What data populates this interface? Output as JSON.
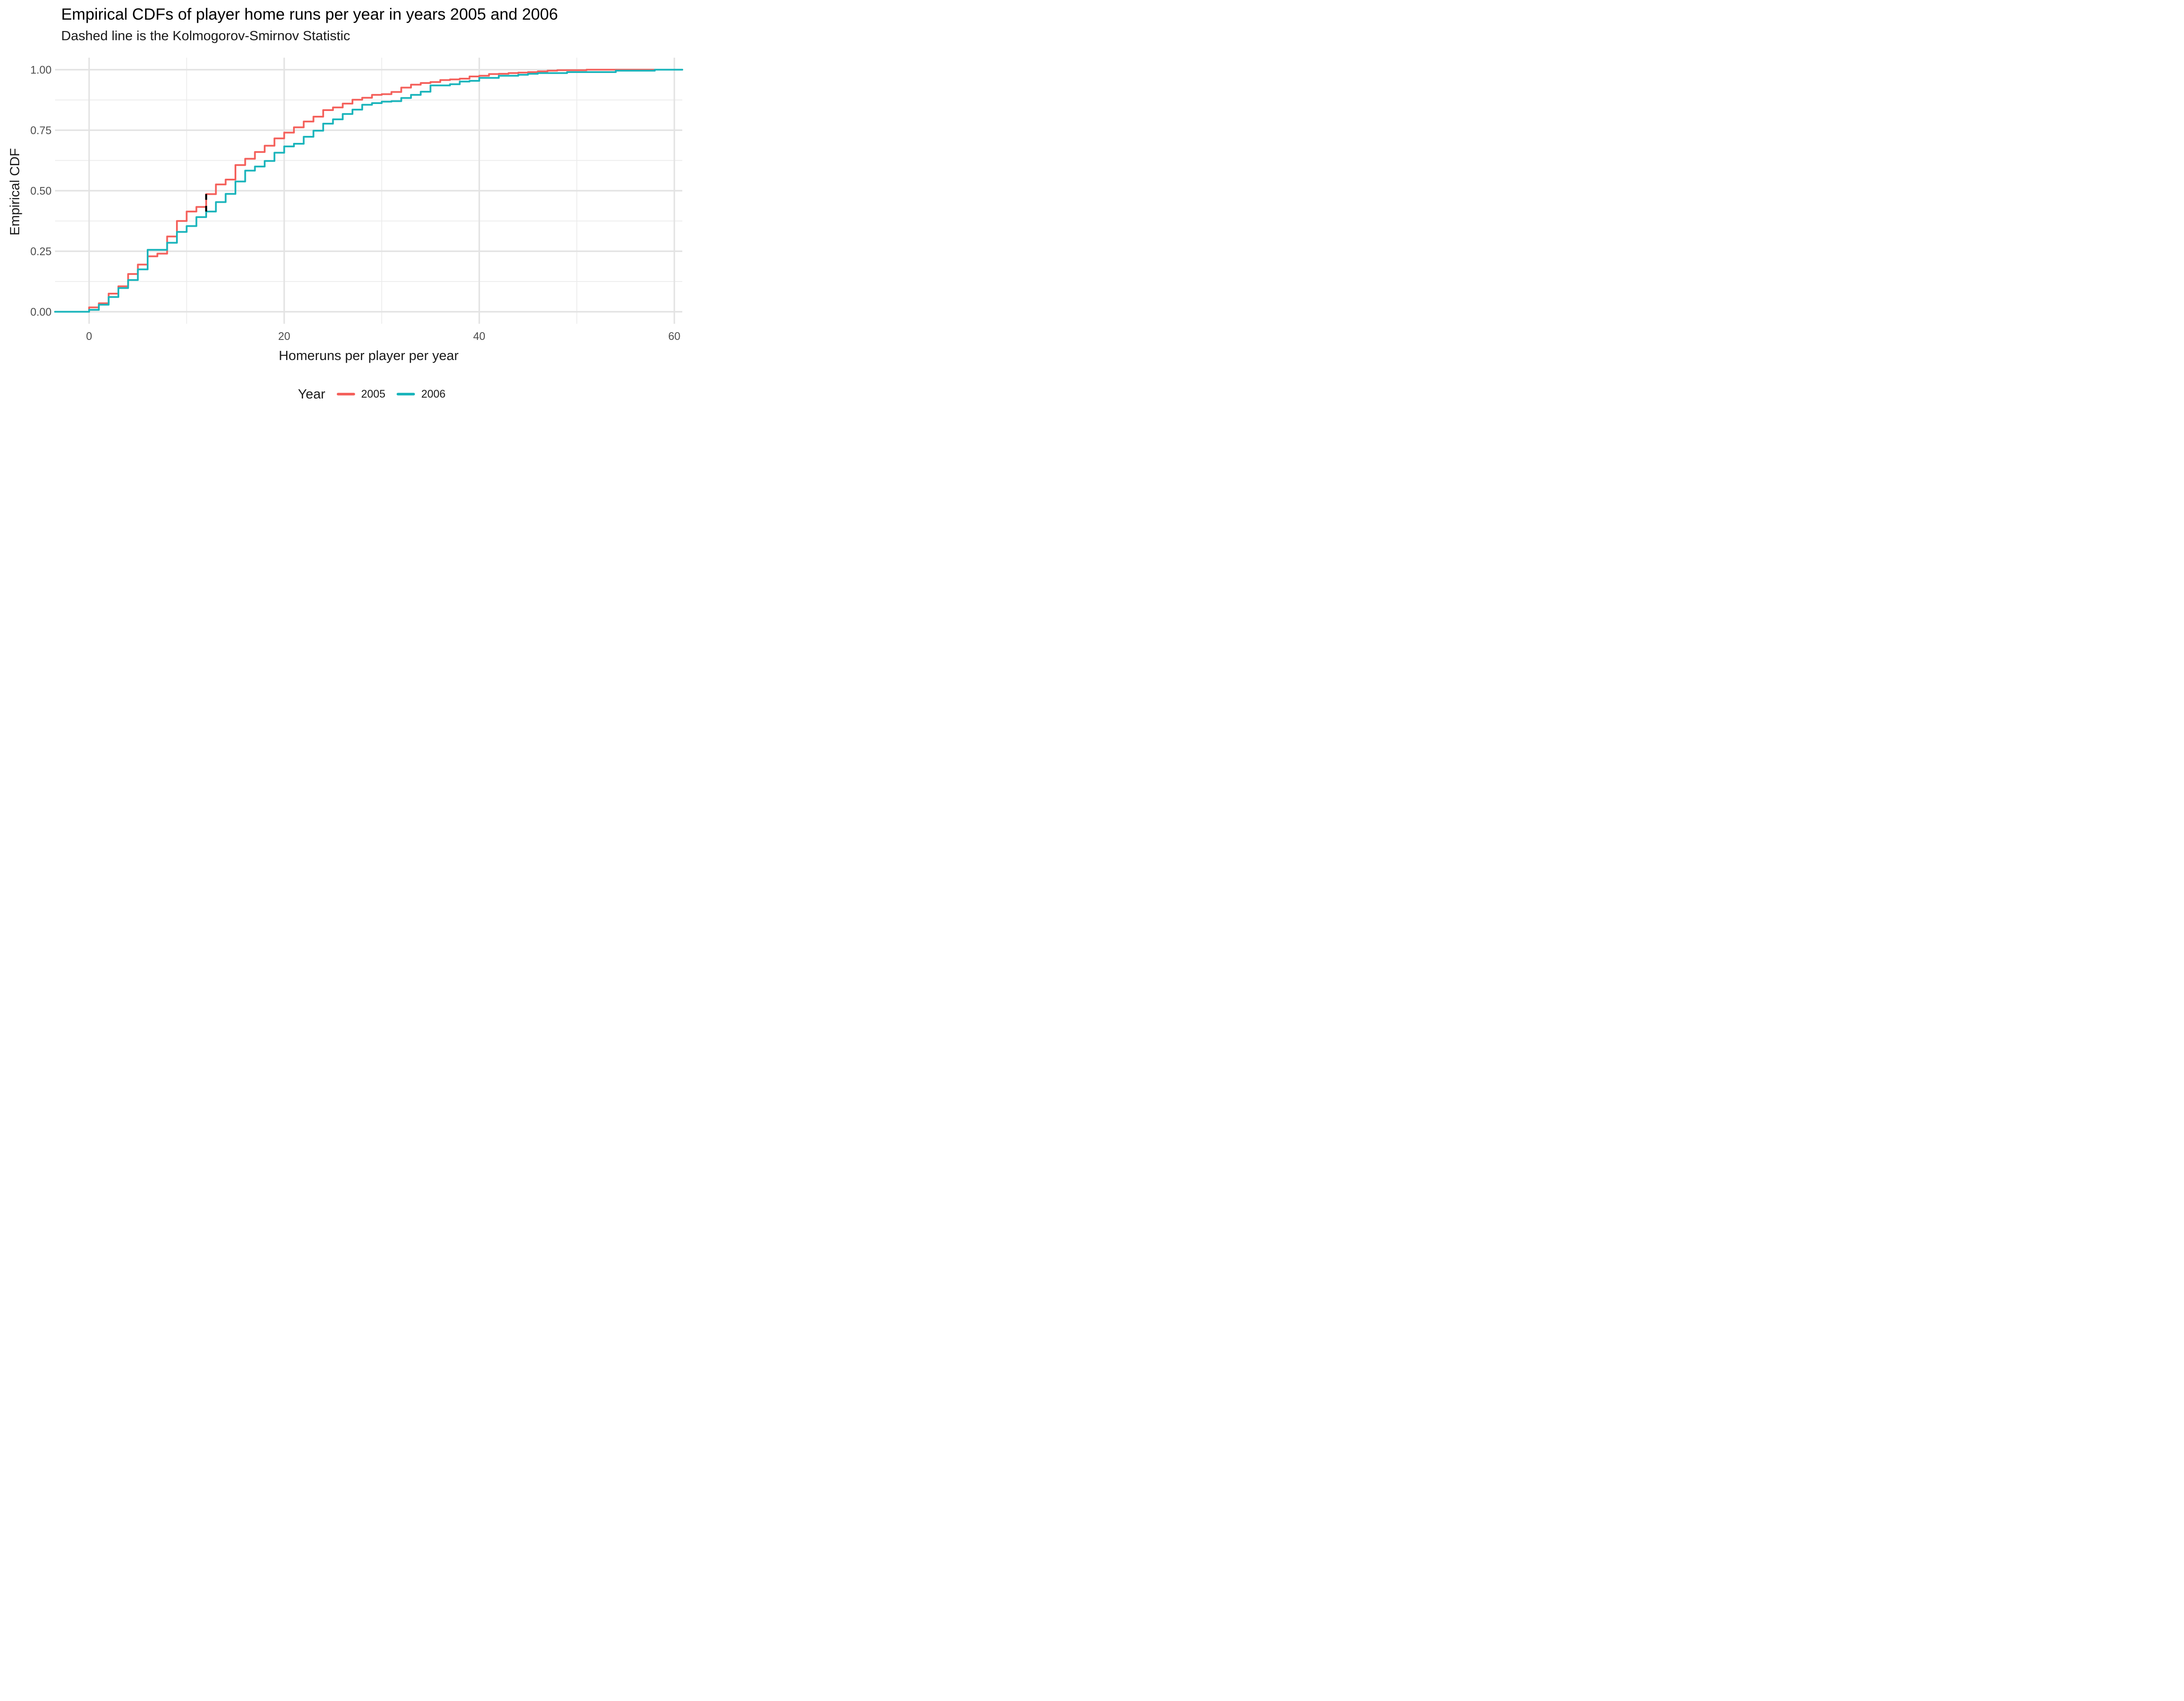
{
  "title": "Empirical CDFs of player home runs per year in years 2005 and 2006",
  "subtitle": "Dashed line is the Kolmogorov-Smirnov Statistic",
  "chart_data": {
    "type": "line",
    "variant": "step-ecdf",
    "title": "Empirical CDFs of player home runs per year in years 2005 and 2006",
    "subtitle": "Dashed line is the Kolmogorov-Smirnov Statistic",
    "xlabel": "Homeruns per player per year",
    "ylabel": "Empirical CDF",
    "xlim": [
      -3.5,
      61.3
    ],
    "ylim": [
      -0.05,
      1.05
    ],
    "grid": "on",
    "x_major_ticks": [
      0,
      20,
      40,
      60
    ],
    "x_tick_labels": [
      "0",
      "20",
      "40",
      "60"
    ],
    "x_minor_ticks": [
      10,
      30,
      50
    ],
    "y_major_ticks": [
      0,
      0.25,
      0.5,
      0.75,
      1.0
    ],
    "y_tick_labels": [
      "0.00",
      "0.25",
      "0.50",
      "0.75",
      "1.00"
    ],
    "y_minor_ticks": [
      0.125,
      0.375,
      0.625,
      0.875
    ],
    "legend": {
      "title": "Year",
      "position": "bottom",
      "entries": [
        {
          "label": "2005",
          "color": "#F4605B"
        },
        {
          "label": "2006",
          "color": "#1AB4BB"
        }
      ]
    },
    "ks_line": {
      "x": 12,
      "y_from": 0.414,
      "y_to": 0.486,
      "color": "#000000",
      "style": "dashed",
      "meaning": "Kolmogorov-Smirnov Statistic"
    },
    "series": [
      {
        "name": "2005",
        "color": "#F4605B",
        "points": [
          [
            0,
            0.018
          ],
          [
            1,
            0.035
          ],
          [
            2,
            0.075
          ],
          [
            3,
            0.105
          ],
          [
            4,
            0.156
          ],
          [
            5,
            0.195
          ],
          [
            6,
            0.229
          ],
          [
            7,
            0.24
          ],
          [
            8,
            0.311
          ],
          [
            9,
            0.375
          ],
          [
            10,
            0.414
          ],
          [
            11,
            0.433
          ],
          [
            12,
            0.486
          ],
          [
            13,
            0.526
          ],
          [
            14,
            0.546
          ],
          [
            15,
            0.606
          ],
          [
            16,
            0.632
          ],
          [
            17,
            0.66
          ],
          [
            18,
            0.686
          ],
          [
            19,
            0.716
          ],
          [
            20,
            0.74
          ],
          [
            21,
            0.762
          ],
          [
            22,
            0.786
          ],
          [
            23,
            0.806
          ],
          [
            24,
            0.833
          ],
          [
            25,
            0.844
          ],
          [
            26,
            0.86
          ],
          [
            27,
            0.876
          ],
          [
            28,
            0.884
          ],
          [
            29,
            0.896
          ],
          [
            30,
            0.899
          ],
          [
            31,
            0.908
          ],
          [
            32,
            0.926
          ],
          [
            33,
            0.938
          ],
          [
            34,
            0.945
          ],
          [
            35,
            0.949
          ],
          [
            36,
            0.957
          ],
          [
            37,
            0.96
          ],
          [
            38,
            0.963
          ],
          [
            39,
            0.972
          ],
          [
            40,
            0.975
          ],
          [
            41,
            0.982
          ],
          [
            42,
            0.983
          ],
          [
            43,
            0.986
          ],
          [
            44,
            0.988
          ],
          [
            45,
            0.99
          ],
          [
            46,
            0.993
          ],
          [
            47,
            0.996
          ],
          [
            48,
            0.998
          ],
          [
            51,
            1.0
          ]
        ]
      },
      {
        "name": "2006",
        "color": "#1AB4BB",
        "points": [
          [
            0,
            0.008
          ],
          [
            1,
            0.029
          ],
          [
            2,
            0.061
          ],
          [
            3,
            0.098
          ],
          [
            4,
            0.131
          ],
          [
            5,
            0.175
          ],
          [
            6,
            0.256
          ],
          [
            8,
            0.285
          ],
          [
            9,
            0.33
          ],
          [
            10,
            0.354
          ],
          [
            11,
            0.391
          ],
          [
            12,
            0.414
          ],
          [
            13,
            0.453
          ],
          [
            14,
            0.487
          ],
          [
            15,
            0.538
          ],
          [
            16,
            0.583
          ],
          [
            17,
            0.6
          ],
          [
            18,
            0.623
          ],
          [
            19,
            0.657
          ],
          [
            20,
            0.683
          ],
          [
            21,
            0.694
          ],
          [
            22,
            0.723
          ],
          [
            23,
            0.748
          ],
          [
            24,
            0.777
          ],
          [
            25,
            0.795
          ],
          [
            26,
            0.817
          ],
          [
            27,
            0.835
          ],
          [
            28,
            0.855
          ],
          [
            29,
            0.862
          ],
          [
            30,
            0.868
          ],
          [
            31,
            0.87
          ],
          [
            32,
            0.883
          ],
          [
            33,
            0.896
          ],
          [
            34,
            0.909
          ],
          [
            35,
            0.935
          ],
          [
            37,
            0.94
          ],
          [
            38,
            0.951
          ],
          [
            39,
            0.954
          ],
          [
            40,
            0.966
          ],
          [
            42,
            0.975
          ],
          [
            44,
            0.979
          ],
          [
            45,
            0.983
          ],
          [
            46,
            0.986
          ],
          [
            49,
            0.99
          ],
          [
            54,
            0.996
          ],
          [
            58,
            1.0
          ]
        ]
      }
    ],
    "style": {
      "grid_major_color": "#E3E3E3",
      "grid_minor_color": "#EBEBEB",
      "background": "#FFFFFF",
      "tick_text_color": "#4D4D4D"
    }
  }
}
